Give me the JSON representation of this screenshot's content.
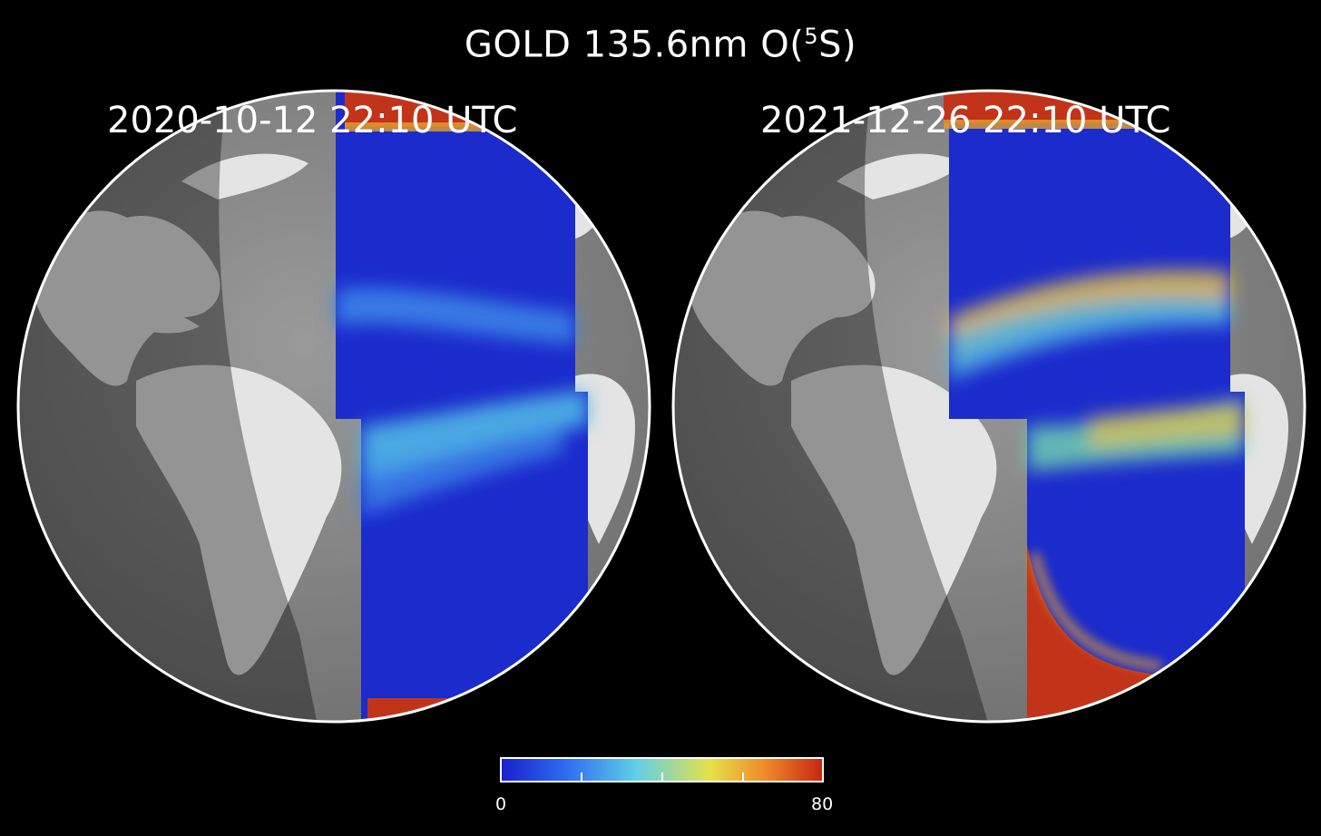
{
  "figure": {
    "title_text": "GOLD 135.6nm O(",
    "title_sup": "5",
    "title_end": "S)"
  },
  "panels": [
    {
      "timestamp": "2020-10-12  22:10 UTC"
    },
    {
      "timestamp": "2021-12-26  22:10 UTC"
    }
  ],
  "colorbar": {
    "min_label": "0",
    "max_label": "80",
    "min": 0,
    "max": 80,
    "colormap": [
      "#1a1fcf",
      "#2f6bf0",
      "#5fd0e8",
      "#e6e04a",
      "#f08a2a",
      "#c4270f"
    ]
  }
}
